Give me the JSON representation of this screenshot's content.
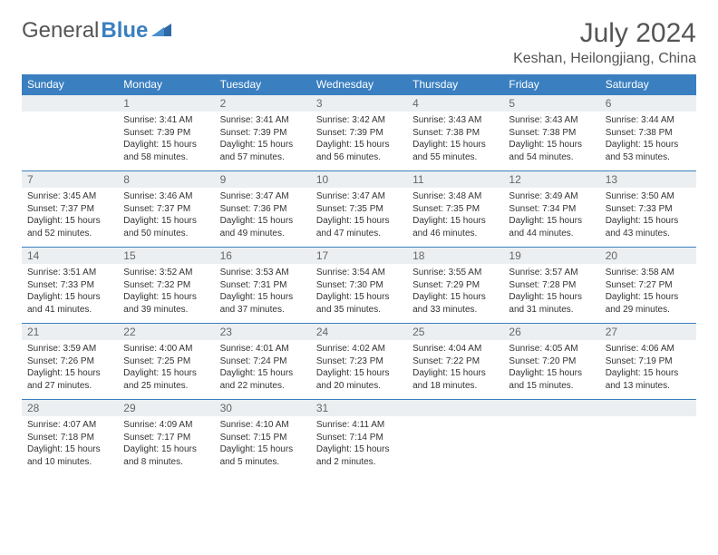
{
  "logo": {
    "part1": "General",
    "part2": "Blue"
  },
  "title": "July 2024",
  "location": "Keshan, Heilongjiang, China",
  "colors": {
    "header_bg": "#3a7fc0",
    "header_text": "#ffffff",
    "daynum_bg": "#eceff1",
    "border": "#3a7fc0"
  },
  "day_labels": [
    "Sunday",
    "Monday",
    "Tuesday",
    "Wednesday",
    "Thursday",
    "Friday",
    "Saturday"
  ],
  "weeks": [
    [
      null,
      {
        "n": "1",
        "sr": "3:41 AM",
        "ss": "7:39 PM",
        "dl": "15 hours and 58 minutes."
      },
      {
        "n": "2",
        "sr": "3:41 AM",
        "ss": "7:39 PM",
        "dl": "15 hours and 57 minutes."
      },
      {
        "n": "3",
        "sr": "3:42 AM",
        "ss": "7:39 PM",
        "dl": "15 hours and 56 minutes."
      },
      {
        "n": "4",
        "sr": "3:43 AM",
        "ss": "7:38 PM",
        "dl": "15 hours and 55 minutes."
      },
      {
        "n": "5",
        "sr": "3:43 AM",
        "ss": "7:38 PM",
        "dl": "15 hours and 54 minutes."
      },
      {
        "n": "6",
        "sr": "3:44 AM",
        "ss": "7:38 PM",
        "dl": "15 hours and 53 minutes."
      }
    ],
    [
      {
        "n": "7",
        "sr": "3:45 AM",
        "ss": "7:37 PM",
        "dl": "15 hours and 52 minutes."
      },
      {
        "n": "8",
        "sr": "3:46 AM",
        "ss": "7:37 PM",
        "dl": "15 hours and 50 minutes."
      },
      {
        "n": "9",
        "sr": "3:47 AM",
        "ss": "7:36 PM",
        "dl": "15 hours and 49 minutes."
      },
      {
        "n": "10",
        "sr": "3:47 AM",
        "ss": "7:35 PM",
        "dl": "15 hours and 47 minutes."
      },
      {
        "n": "11",
        "sr": "3:48 AM",
        "ss": "7:35 PM",
        "dl": "15 hours and 46 minutes."
      },
      {
        "n": "12",
        "sr": "3:49 AM",
        "ss": "7:34 PM",
        "dl": "15 hours and 44 minutes."
      },
      {
        "n": "13",
        "sr": "3:50 AM",
        "ss": "7:33 PM",
        "dl": "15 hours and 43 minutes."
      }
    ],
    [
      {
        "n": "14",
        "sr": "3:51 AM",
        "ss": "7:33 PM",
        "dl": "15 hours and 41 minutes."
      },
      {
        "n": "15",
        "sr": "3:52 AM",
        "ss": "7:32 PM",
        "dl": "15 hours and 39 minutes."
      },
      {
        "n": "16",
        "sr": "3:53 AM",
        "ss": "7:31 PM",
        "dl": "15 hours and 37 minutes."
      },
      {
        "n": "17",
        "sr": "3:54 AM",
        "ss": "7:30 PM",
        "dl": "15 hours and 35 minutes."
      },
      {
        "n": "18",
        "sr": "3:55 AM",
        "ss": "7:29 PM",
        "dl": "15 hours and 33 minutes."
      },
      {
        "n": "19",
        "sr": "3:57 AM",
        "ss": "7:28 PM",
        "dl": "15 hours and 31 minutes."
      },
      {
        "n": "20",
        "sr": "3:58 AM",
        "ss": "7:27 PM",
        "dl": "15 hours and 29 minutes."
      }
    ],
    [
      {
        "n": "21",
        "sr": "3:59 AM",
        "ss": "7:26 PM",
        "dl": "15 hours and 27 minutes."
      },
      {
        "n": "22",
        "sr": "4:00 AM",
        "ss": "7:25 PM",
        "dl": "15 hours and 25 minutes."
      },
      {
        "n": "23",
        "sr": "4:01 AM",
        "ss": "7:24 PM",
        "dl": "15 hours and 22 minutes."
      },
      {
        "n": "24",
        "sr": "4:02 AM",
        "ss": "7:23 PM",
        "dl": "15 hours and 20 minutes."
      },
      {
        "n": "25",
        "sr": "4:04 AM",
        "ss": "7:22 PM",
        "dl": "15 hours and 18 minutes."
      },
      {
        "n": "26",
        "sr": "4:05 AM",
        "ss": "7:20 PM",
        "dl": "15 hours and 15 minutes."
      },
      {
        "n": "27",
        "sr": "4:06 AM",
        "ss": "7:19 PM",
        "dl": "15 hours and 13 minutes."
      }
    ],
    [
      {
        "n": "28",
        "sr": "4:07 AM",
        "ss": "7:18 PM",
        "dl": "15 hours and 10 minutes."
      },
      {
        "n": "29",
        "sr": "4:09 AM",
        "ss": "7:17 PM",
        "dl": "15 hours and 8 minutes."
      },
      {
        "n": "30",
        "sr": "4:10 AM",
        "ss": "7:15 PM",
        "dl": "15 hours and 5 minutes."
      },
      {
        "n": "31",
        "sr": "4:11 AM",
        "ss": "7:14 PM",
        "dl": "15 hours and 2 minutes."
      },
      null,
      null,
      null
    ]
  ],
  "labels": {
    "sunrise": "Sunrise:",
    "sunset": "Sunset:",
    "daylight": "Daylight:"
  }
}
